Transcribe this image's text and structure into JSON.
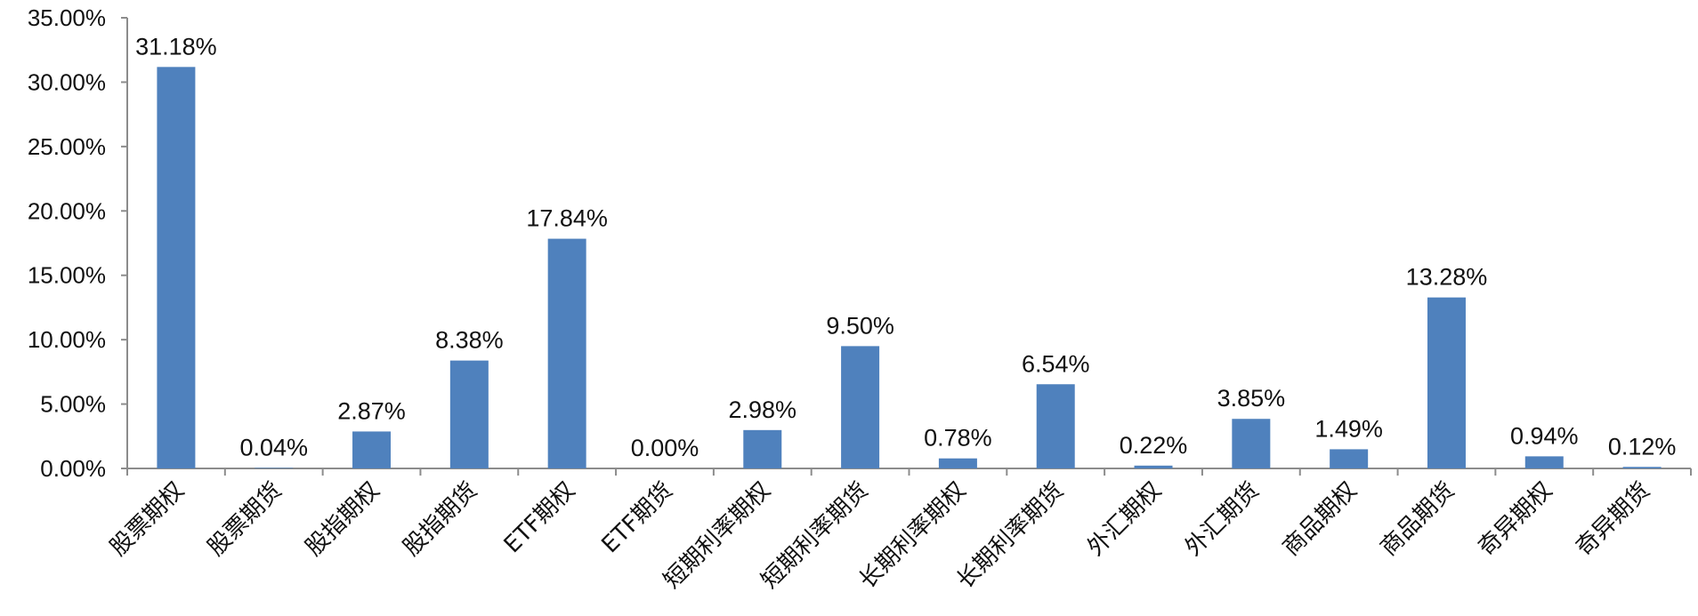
{
  "chart_data": {
    "type": "bar",
    "title": "",
    "xlabel": "",
    "ylabel": "",
    "categories": [
      "股票期权",
      "股票期货",
      "股指期权",
      "股指期货",
      "ETF期权",
      "ETF期货",
      "短期利率期权",
      "短期利率期货",
      "长期利率期权",
      "长期利率期货",
      "外汇期权",
      "外汇期货",
      "商品期权",
      "商品期货",
      "奇异期权",
      "奇异期货"
    ],
    "values": [
      31.18,
      0.04,
      2.87,
      8.38,
      17.84,
      0.0,
      2.98,
      9.5,
      0.78,
      6.54,
      0.22,
      3.85,
      1.49,
      13.28,
      0.94,
      0.12
    ],
    "data_labels": [
      "31.18%",
      "0.04%",
      "2.87%",
      "8.38%",
      "17.84%",
      "0.00%",
      "2.98%",
      "9.50%",
      "0.78%",
      "6.54%",
      "0.22%",
      "3.85%",
      "1.49%",
      "13.28%",
      "0.94%",
      "0.12%"
    ],
    "y_ticks": [
      0,
      5,
      10,
      15,
      20,
      25,
      30,
      35
    ],
    "y_tick_labels": [
      "0.00%",
      "5.00%",
      "10.00%",
      "15.00%",
      "20.00%",
      "25.00%",
      "30.00%",
      "35.00%"
    ],
    "ylim": [
      0,
      35
    ],
    "grid": false,
    "legend": "none",
    "bar_color": "#4f81bd",
    "axis_color": "#8c8c8c"
  }
}
